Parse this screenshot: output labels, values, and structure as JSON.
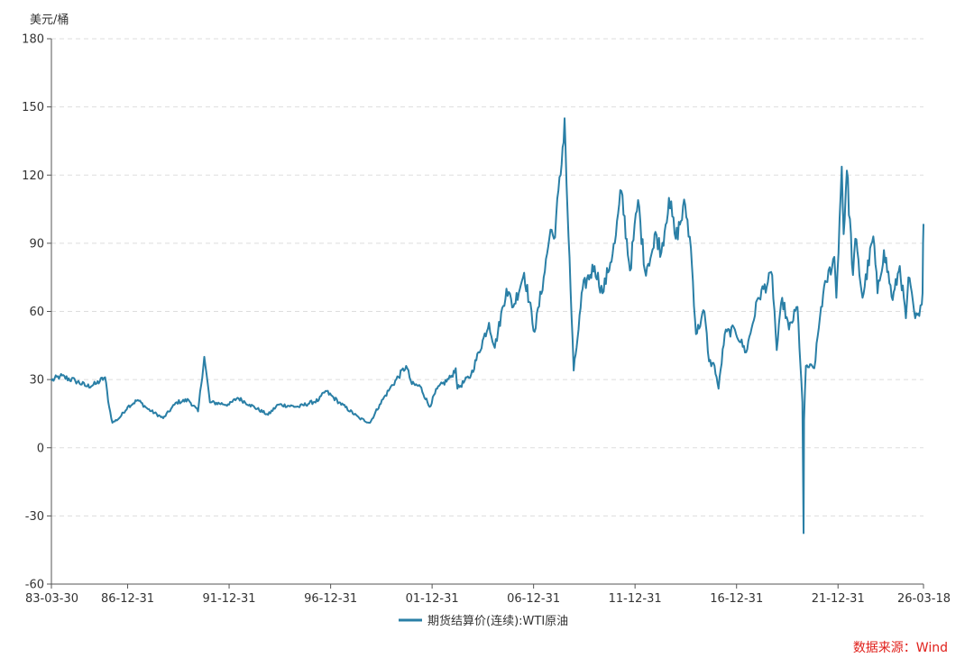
{
  "chart_data": {
    "type": "line",
    "unit_label": "美元/桶",
    "ylim": [
      -60,
      180
    ],
    "y_ticks": [
      -60,
      -30,
      0,
      30,
      60,
      90,
      120,
      150,
      180
    ],
    "x_range": [
      "1983-03-30",
      "2026-03-18"
    ],
    "x_ticks": [
      {
        "label": "83-03-30",
        "date": "1983-03-30"
      },
      {
        "label": "86-12-31",
        "date": "1986-12-31"
      },
      {
        "label": "91-12-31",
        "date": "1991-12-31"
      },
      {
        "label": "96-12-31",
        "date": "1996-12-31"
      },
      {
        "label": "01-12-31",
        "date": "2001-12-31"
      },
      {
        "label": "06-12-31",
        "date": "2006-12-31"
      },
      {
        "label": "11-12-31",
        "date": "2011-12-31"
      },
      {
        "label": "16-12-31",
        "date": "2016-12-31"
      },
      {
        "label": "21-12-31",
        "date": "2021-12-31"
      },
      {
        "label": "26-03-18",
        "date": "2026-03-18"
      }
    ],
    "grid": "horizontal dashed",
    "legend_position": "bottom",
    "colors": {
      "series": "#2a7fa6",
      "source": "#e0201b"
    },
    "series": [
      {
        "name": "期货结算价(连续):WTI原油",
        "points": [
          [
            "1983-03-30",
            29.5
          ],
          [
            "1983-09-01",
            31.5
          ],
          [
            "1984-06-01",
            29.5
          ],
          [
            "1985-01-01",
            27
          ],
          [
            "1985-06-01",
            28
          ],
          [
            "1985-11-20",
            31
          ],
          [
            "1986-02-01",
            18
          ],
          [
            "1986-04-01",
            11
          ],
          [
            "1986-08-01",
            13
          ],
          [
            "1987-01-01",
            18
          ],
          [
            "1987-07-01",
            21
          ],
          [
            "1988-01-01",
            17
          ],
          [
            "1988-10-01",
            13
          ],
          [
            "1989-06-01",
            20
          ],
          [
            "1990-01-01",
            21
          ],
          [
            "1990-06-20",
            16
          ],
          [
            "1990-10-10",
            40
          ],
          [
            "1991-01-20",
            20
          ],
          [
            "1991-12-31",
            19
          ],
          [
            "1992-06-01",
            22
          ],
          [
            "1993-01-01",
            19
          ],
          [
            "1993-12-01",
            14.5
          ],
          [
            "1994-06-01",
            19
          ],
          [
            "1995-06-01",
            18
          ],
          [
            "1996-06-01",
            21
          ],
          [
            "1996-10-01",
            25
          ],
          [
            "1997-06-01",
            20
          ],
          [
            "1998-06-01",
            13
          ],
          [
            "1998-12-10",
            11
          ],
          [
            "1999-06-01",
            19
          ],
          [
            "1999-12-01",
            26
          ],
          [
            "2000-09-20",
            36
          ],
          [
            "2001-01-01",
            28
          ],
          [
            "2001-06-01",
            27
          ],
          [
            "2001-11-15",
            18
          ],
          [
            "2002-04-01",
            26
          ],
          [
            "2002-12-01",
            31
          ],
          [
            "2003-03-01",
            35
          ],
          [
            "2003-04-01",
            26
          ],
          [
            "2003-12-01",
            32
          ],
          [
            "2004-10-20",
            55
          ],
          [
            "2005-02-01",
            44
          ],
          [
            "2005-08-30",
            70
          ],
          [
            "2006-01-01",
            62
          ],
          [
            "2006-07-14",
            77
          ],
          [
            "2007-01-18",
            51
          ],
          [
            "2007-07-01",
            75
          ],
          [
            "2007-11-01",
            96
          ],
          [
            "2008-01-01",
            92
          ],
          [
            "2008-05-01",
            120
          ],
          [
            "2008-07-11",
            145
          ],
          [
            "2008-09-01",
            105
          ],
          [
            "2008-12-22",
            34
          ],
          [
            "2009-03-01",
            48
          ],
          [
            "2009-06-01",
            70
          ],
          [
            "2010-01-01",
            80
          ],
          [
            "2010-05-25",
            68
          ],
          [
            "2011-01-01",
            90
          ],
          [
            "2011-04-29",
            113
          ],
          [
            "2011-10-01",
            78
          ],
          [
            "2012-02-24",
            109
          ],
          [
            "2012-06-25",
            78
          ],
          [
            "2012-12-01",
            88
          ],
          [
            "2013-01-01",
            95
          ],
          [
            "2013-04-18",
            86
          ],
          [
            "2013-09-01",
            110
          ],
          [
            "2014-01-01",
            92
          ],
          [
            "2014-06-20",
            107
          ],
          [
            "2014-10-01",
            88
          ],
          [
            "2015-01-01",
            50
          ],
          [
            "2015-06-01",
            60
          ],
          [
            "2015-08-24",
            38
          ],
          [
            "2015-12-01",
            36
          ],
          [
            "2016-02-11",
            26
          ],
          [
            "2016-06-01",
            50
          ],
          [
            "2016-12-01",
            52
          ],
          [
            "2017-06-21",
            42
          ],
          [
            "2018-01-25",
            66
          ],
          [
            "2018-10-03",
            76
          ],
          [
            "2018-12-24",
            43
          ],
          [
            "2019-04-01",
            66
          ],
          [
            "2019-08-01",
            52
          ],
          [
            "2020-01-01",
            62
          ],
          [
            "2020-03-30",
            20
          ],
          [
            "2020-04-20",
            -37.6
          ],
          [
            "2020-04-28",
            12
          ],
          [
            "2020-06-01",
            36
          ],
          [
            "2020-10-30",
            35
          ],
          [
            "2021-03-01",
            62
          ],
          [
            "2021-06-01",
            73
          ],
          [
            "2021-10-25",
            84
          ],
          [
            "2021-12-01",
            66
          ],
          [
            "2022-03-08",
            123.7
          ],
          [
            "2022-04-11",
            94
          ],
          [
            "2022-06-08",
            122
          ],
          [
            "2022-09-26",
            76
          ],
          [
            "2022-11-07",
            92
          ],
          [
            "2023-03-17",
            66
          ],
          [
            "2023-09-27",
            93
          ],
          [
            "2023-12-12",
            68
          ],
          [
            "2024-04-05",
            87
          ],
          [
            "2024-09-10",
            65
          ],
          [
            "2025-01-15",
            80
          ],
          [
            "2025-05-05",
            57
          ],
          [
            "2025-06-20",
            75
          ],
          [
            "2025-10-20",
            57
          ],
          [
            "2026-01-01",
            58
          ],
          [
            "2026-02-15",
            63
          ],
          [
            "2026-03-01",
            68
          ],
          [
            "2026-03-10",
            90
          ],
          [
            "2026-03-18",
            98.5
          ]
        ]
      }
    ]
  },
  "source_text": "数据来源：Wind"
}
